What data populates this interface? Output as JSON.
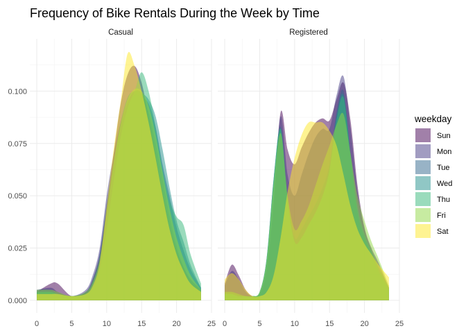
{
  "chart_data": {
    "type": "area",
    "subtype": "density",
    "title": "Frequency of Bike Rentals During the Week by Time",
    "xlabel": "",
    "ylabel": "",
    "xlim": [
      -1,
      25
    ],
    "ylim": [
      -0.006,
      0.125
    ],
    "x_ticks": [
      0,
      5,
      10,
      15,
      20,
      25
    ],
    "y_ticks": [
      0.0,
      0.025,
      0.05,
      0.075,
      0.1
    ],
    "y_tick_labels": [
      "0.000",
      "0.025",
      "0.050",
      "0.075",
      "0.100"
    ],
    "grid": true,
    "legend": {
      "title": "weekday",
      "position": "right"
    },
    "fill_opacity": 0.5,
    "series_names": [
      "Sun",
      "Mon",
      "Tue",
      "Wed",
      "Thu",
      "Fri",
      "Sat"
    ],
    "series_colors": [
      "#440154",
      "#443A83",
      "#31688E",
      "#21908C",
      "#35B779",
      "#8FD744",
      "#FDE725"
    ],
    "panels": [
      {
        "name": "Casual",
        "x": [
          0,
          2,
          3,
          5,
          7,
          8,
          9,
          10,
          11,
          12,
          13,
          14,
          15,
          16,
          17,
          18,
          19,
          20,
          21,
          22,
          23.5
        ],
        "series": [
          {
            "name": "Sun",
            "values": [
              0.004,
              0.008,
              0.008,
              0.002,
              0.004,
              0.01,
              0.022,
              0.045,
              0.07,
              0.094,
              0.108,
              0.112,
              0.104,
              0.088,
              0.07,
              0.052,
              0.036,
              0.024,
              0.016,
              0.01,
              0.005
            ]
          },
          {
            "name": "Mon",
            "values": [
              0.005,
              0.006,
              0.004,
              0.002,
              0.005,
              0.012,
              0.025,
              0.05,
              0.07,
              0.085,
              0.095,
              0.1,
              0.099,
              0.09,
              0.075,
              0.058,
              0.04,
              0.026,
              0.016,
              0.01,
              0.005
            ]
          },
          {
            "name": "Tue",
            "values": [
              0.005,
              0.005,
              0.003,
              0.002,
              0.004,
              0.01,
              0.022,
              0.046,
              0.066,
              0.083,
              0.093,
              0.098,
              0.097,
              0.094,
              0.083,
              0.065,
              0.05,
              0.035,
              0.024,
              0.015,
              0.006
            ]
          },
          {
            "name": "Wed",
            "values": [
              0.004,
              0.004,
              0.003,
              0.002,
              0.003,
              0.008,
              0.018,
              0.04,
              0.065,
              0.085,
              0.097,
              0.1,
              0.099,
              0.096,
              0.088,
              0.072,
              0.054,
              0.038,
              0.028,
              0.017,
              0.006
            ]
          },
          {
            "name": "Thu",
            "values": [
              0.004,
              0.004,
              0.003,
              0.002,
              0.003,
              0.006,
              0.015,
              0.034,
              0.057,
              0.078,
              0.092,
              0.1,
              0.109,
              0.1,
              0.083,
              0.063,
              0.048,
              0.04,
              0.036,
              0.022,
              0.008
            ]
          },
          {
            "name": "Fri",
            "values": [
              0.005,
              0.005,
              0.004,
              0.002,
              0.004,
              0.009,
              0.02,
              0.042,
              0.066,
              0.084,
              0.096,
              0.101,
              0.1,
              0.093,
              0.079,
              0.061,
              0.044,
              0.03,
              0.02,
              0.012,
              0.005
            ]
          },
          {
            "name": "Sat",
            "values": [
              0.003,
              0.003,
              0.003,
              0.002,
              0.003,
              0.007,
              0.018,
              0.045,
              0.072,
              0.095,
              0.118,
              0.112,
              0.1,
              0.085,
              0.068,
              0.05,
              0.034,
              0.022,
              0.014,
              0.008,
              0.004
            ]
          }
        ]
      },
      {
        "name": "Registered",
        "x": [
          0,
          1,
          2,
          3,
          4,
          5,
          6,
          7,
          8,
          9,
          10,
          11,
          12,
          13,
          14,
          15,
          16,
          17,
          18,
          19,
          20,
          21,
          22,
          23.5
        ],
        "series": [
          {
            "name": "Sun",
            "values": [
              0.008,
              0.017,
              0.012,
              0.005,
              0.002,
              0.003,
              0.015,
              0.045,
              0.09,
              0.072,
              0.065,
              0.073,
              0.08,
              0.085,
              0.087,
              0.086,
              0.096,
              0.104,
              0.086,
              0.055,
              0.035,
              0.025,
              0.018,
              0.006
            ]
          },
          {
            "name": "Mon",
            "values": [
              0.007,
              0.014,
              0.01,
              0.004,
              0.002,
              0.003,
              0.016,
              0.05,
              0.088,
              0.06,
              0.05,
              0.06,
              0.07,
              0.078,
              0.082,
              0.082,
              0.098,
              0.107,
              0.082,
              0.052,
              0.034,
              0.024,
              0.016,
              0.006
            ]
          },
          {
            "name": "Tue",
            "values": [
              0.004,
              0.004,
              0.003,
              0.002,
              0.002,
              0.004,
              0.02,
              0.058,
              0.083,
              0.05,
              0.03,
              0.034,
              0.04,
              0.046,
              0.054,
              0.065,
              0.09,
              0.1,
              0.07,
              0.042,
              0.03,
              0.022,
              0.014,
              0.005
            ]
          },
          {
            "name": "Wed",
            "values": [
              0.003,
              0.003,
              0.002,
              0.002,
              0.002,
              0.004,
              0.02,
              0.058,
              0.082,
              0.048,
              0.028,
              0.03,
              0.036,
              0.042,
              0.05,
              0.063,
              0.088,
              0.098,
              0.07,
              0.042,
              0.03,
              0.022,
              0.014,
              0.005
            ]
          },
          {
            "name": "Thu",
            "values": [
              0.003,
              0.003,
              0.002,
              0.002,
              0.002,
              0.004,
              0.02,
              0.058,
              0.082,
              0.048,
              0.028,
              0.03,
              0.036,
              0.042,
              0.05,
              0.062,
              0.086,
              0.097,
              0.07,
              0.045,
              0.032,
              0.024,
              0.016,
              0.006
            ]
          },
          {
            "name": "Fri",
            "values": [
              0.004,
              0.004,
              0.003,
              0.002,
              0.002,
              0.004,
              0.019,
              0.055,
              0.08,
              0.05,
              0.034,
              0.038,
              0.045,
              0.055,
              0.065,
              0.074,
              0.084,
              0.089,
              0.07,
              0.05,
              0.038,
              0.028,
              0.02,
              0.007
            ]
          },
          {
            "name": "Sat",
            "values": [
              0.01,
              0.013,
              0.01,
              0.005,
              0.002,
              0.002,
              0.004,
              0.012,
              0.03,
              0.052,
              0.068,
              0.079,
              0.085,
              0.085,
              0.085,
              0.081,
              0.074,
              0.06,
              0.045,
              0.034,
              0.027,
              0.022,
              0.017,
              0.011
            ]
          }
        ]
      }
    ]
  }
}
